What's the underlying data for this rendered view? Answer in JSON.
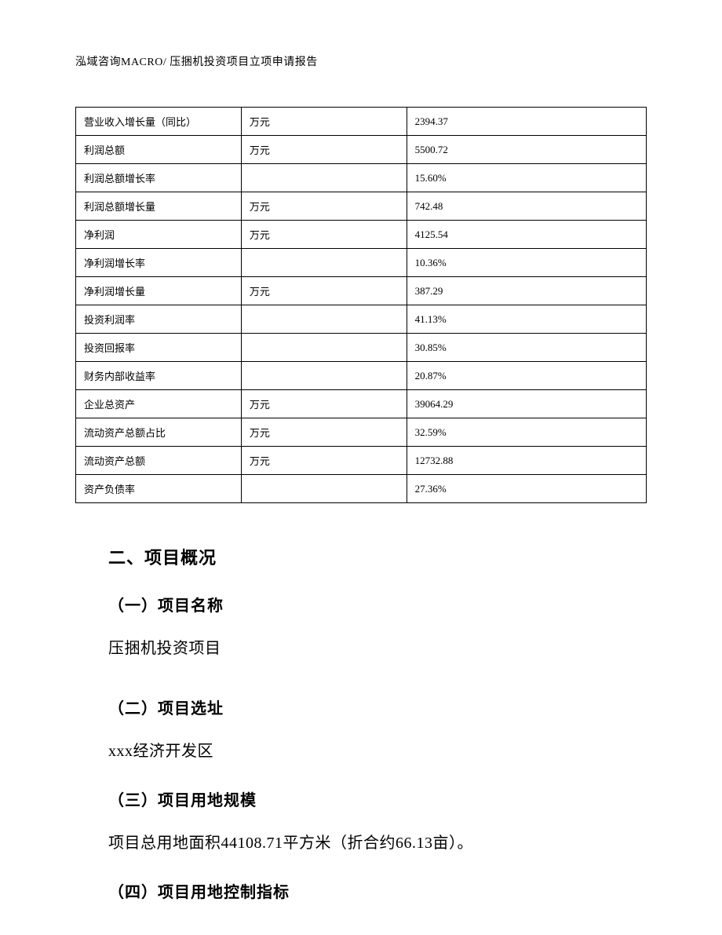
{
  "header": {
    "text": "泓域咨询MACRO/   压捆机投资项目立项申请报告"
  },
  "table": {
    "rows": [
      {
        "label": "营业收入增长量（同比）",
        "unit": "万元",
        "value": "2394.37"
      },
      {
        "label": "利润总额",
        "unit": "万元",
        "value": "5500.72"
      },
      {
        "label": "利润总额增长率",
        "unit": "",
        "value": "15.60%"
      },
      {
        "label": "利润总额增长量",
        "unit": "万元",
        "value": "742.48"
      },
      {
        "label": "净利润",
        "unit": "万元",
        "value": "4125.54"
      },
      {
        "label": "净利润增长率",
        "unit": "",
        "value": "10.36%"
      },
      {
        "label": "净利润增长量",
        "unit": "万元",
        "value": "387.29"
      },
      {
        "label": "投资利润率",
        "unit": "",
        "value": "41.13%"
      },
      {
        "label": "投资回报率",
        "unit": "",
        "value": "30.85%"
      },
      {
        "label": "财务内部收益率",
        "unit": "",
        "value": "20.87%"
      },
      {
        "label": "企业总资产",
        "unit": "万元",
        "value": "39064.29"
      },
      {
        "label": "流动资产总额占比",
        "unit": "万元",
        "value": "32.59%"
      },
      {
        "label": "流动资产总额",
        "unit": "万元",
        "value": "12732.88"
      },
      {
        "label": "资产负债率",
        "unit": "",
        "value": "27.36%"
      }
    ]
  },
  "sections": {
    "main_heading": "二、项目概况",
    "sub1_heading": "（一）项目名称",
    "sub1_text": "压捆机投资项目",
    "sub2_heading": "（二）项目选址",
    "sub2_text": "xxx经济开发区",
    "sub3_heading": "（三）项目用地规模",
    "sub3_text": "项目总用地面积44108.71平方米（折合约66.13亩）。",
    "sub4_heading": "（四）项目用地控制指标"
  }
}
